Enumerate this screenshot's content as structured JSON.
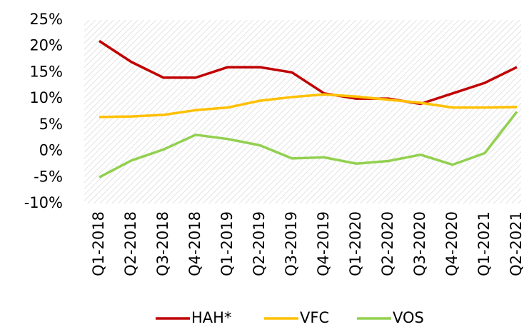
{
  "chart_data": {
    "type": "line",
    "categories": [
      "Q1-2018",
      "Q2-2018",
      "Q3-2018",
      "Q4-2018",
      "Q1-2019",
      "Q2-2019",
      "Q3-2019",
      "Q4-2019",
      "Q1-2020",
      "Q2-2020",
      "Q3-2020",
      "Q4-2020",
      "Q1-2021",
      "Q2-2021"
    ],
    "series": [
      {
        "name": "HAH*",
        "color": "#c00000",
        "values": [
          21,
          17,
          14,
          14,
          16,
          16,
          15,
          11,
          10,
          10,
          9,
          11,
          13,
          16
        ]
      },
      {
        "name": "VFC",
        "color": "#ffc000",
        "values": [
          6.5,
          6.6,
          6.9,
          7.8,
          8.3,
          9.6,
          10.3,
          10.8,
          10.4,
          9.8,
          9.2,
          8.3,
          8.3,
          8.4
        ]
      },
      {
        "name": "VOS",
        "color": "#92d050",
        "values": [
          -5.0,
          -1.8,
          0.3,
          3.1,
          2.3,
          1.1,
          -1.4,
          -1.2,
          -2.4,
          -1.9,
          -0.7,
          -2.6,
          -0.4,
          7.5
        ]
      }
    ],
    "ylim": [
      -10,
      25
    ],
    "yticks": [
      {
        "value": -10,
        "label": "-10%"
      },
      {
        "value": -5,
        "label": "-5%"
      },
      {
        "value": 0,
        "label": "0%"
      },
      {
        "value": 5,
        "label": "5%"
      },
      {
        "value": 10,
        "label": "10%"
      },
      {
        "value": 15,
        "label": "15%"
      },
      {
        "value": 20,
        "label": "20%"
      },
      {
        "value": 25,
        "label": "25%"
      }
    ],
    "legend": "bottom"
  }
}
